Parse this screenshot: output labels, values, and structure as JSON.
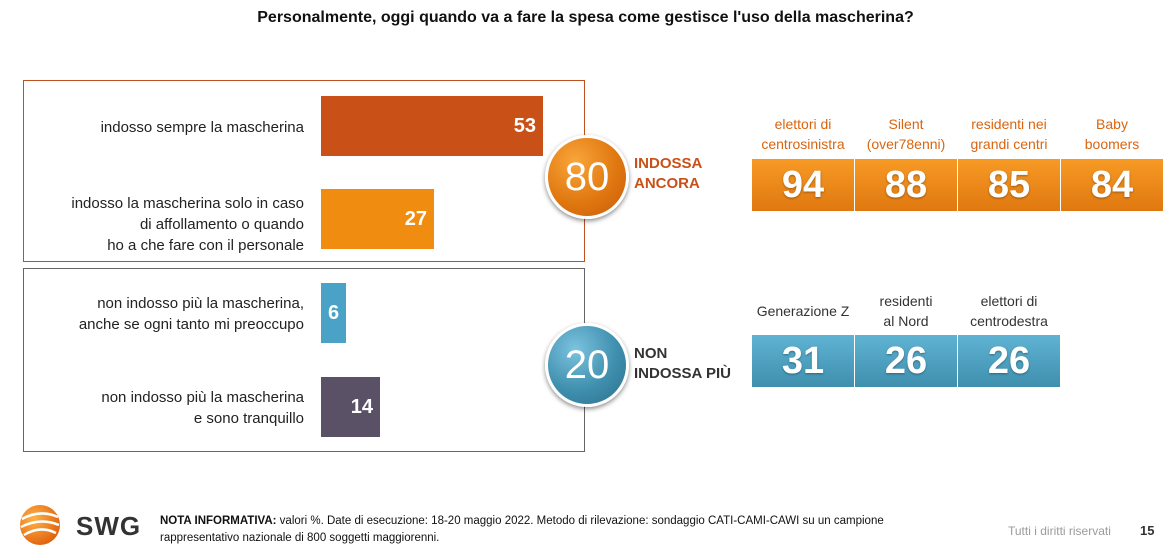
{
  "title": "Personalmente, oggi quando va a fare la spesa come gestisce l'uso della mascherina?",
  "colors": {
    "sempre": "#c95118",
    "affollamento": "#f08c0f",
    "preoccupo": "#4aa3c6",
    "tranquillo": "#5b5166",
    "orange_group": "#e07810",
    "blue_group": "#3f8fae"
  },
  "chart_data": {
    "type": "bar",
    "orientation": "horizontal",
    "xlim": [
      0,
      60
    ],
    "categories": [
      "indosso sempre la mascherina",
      "indosso la mascherina solo in caso di affollamento o quando ho a che fare con il personale",
      "non indosso più la mascherina, anche se ogni tanto mi preoccupo",
      "non indosso più la mascherina e sono tranquillo"
    ],
    "values": [
      53,
      27,
      6,
      14
    ]
  },
  "rows": [
    {
      "label_lines": [
        "indosso sempre la mascherina"
      ],
      "value": "53"
    },
    {
      "label_lines": [
        "indosso la mascherina solo in caso",
        "di affollamento o quando",
        "ho a che fare con il personale"
      ],
      "value": "27"
    },
    {
      "label_lines": [
        "non indosso più la mascherina,",
        "anche se ogni tanto mi preoccupo"
      ],
      "value": "6"
    },
    {
      "label_lines": [
        "non indosso più la mascherina",
        "e sono tranquillo"
      ],
      "value": "14"
    }
  ],
  "groups": [
    {
      "total": "80",
      "label_lines": [
        "INDOSSA",
        "ANCORA"
      ],
      "segments": [
        {
          "label_lines": [
            "elettori di",
            "centrosinistra"
          ],
          "value": "94"
        },
        {
          "label_lines": [
            "Silent",
            "(over78enni)"
          ],
          "value": "88"
        },
        {
          "label_lines": [
            "residenti nei",
            "grandi centri"
          ],
          "value": "85"
        },
        {
          "label_lines": [
            "Baby",
            "boomers"
          ],
          "value": "84"
        }
      ]
    },
    {
      "total": "20",
      "label_lines": [
        "NON",
        "INDOSSA PIÙ"
      ],
      "segments": [
        {
          "label_lines": [
            "Generazione Z"
          ],
          "value": "31"
        },
        {
          "label_lines": [
            "residenti",
            "al Nord"
          ],
          "value": "26"
        },
        {
          "label_lines": [
            "elettori di",
            "centrodestra"
          ],
          "value": "26"
        }
      ]
    }
  ],
  "footer": {
    "brand": "SWG",
    "note_bold": "NOTA INFORMATIVA:",
    "note_line1": " valori %. Date di esecuzione: 18-20 maggio 2022. Metodo di rilevazione: sondaggio CATI-CAMI-CAWI su un campione",
    "note_line2": "rappresentativo nazionale di 800 soggetti maggiorenni.",
    "rights": "Tutti i diritti riservati",
    "page": "15"
  }
}
